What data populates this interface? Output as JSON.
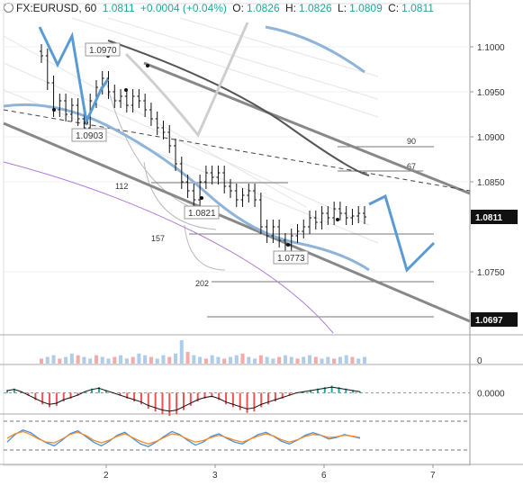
{
  "header": {
    "symbol": "FX:EURUSD, 60",
    "last": "1.0811",
    "change": "+0.0004 (+0.04%)",
    "o_label": "O:",
    "o_value": "1.0826",
    "h_label": "H:",
    "h_value": "1.0826",
    "l_label": "L:",
    "l_value": "1.0809",
    "c_label": "C:",
    "c_value": "1.0811"
  },
  "colors": {
    "up": "#26a69a",
    "down": "#ef5350",
    "projection": "#5b9bd5",
    "channel": "#888888",
    "ma_dark": "#555555",
    "ma_light": "#8fb4d9",
    "ma_purple": "#b27ad9",
    "osc_orange": "#f28c28",
    "osc_blue": "#4a90d9"
  },
  "chart_data": [
    {
      "type": "candlestick",
      "y_ticks": [
        "1.1000",
        "1.0950",
        "1.0900",
        "1.0850",
        "1.0750"
      ],
      "y_range": [
        1.068,
        1.103
      ],
      "x_ticks": [
        "2",
        "3",
        "6",
        "7"
      ],
      "price_badges": [
        {
          "label": "1.0811",
          "value": 1.0811,
          "style": "dark"
        },
        {
          "label": "1.0697",
          "value": 1.0697,
          "style": "dark"
        }
      ],
      "annotations": [
        {
          "text": "1.0970",
          "value": 1.097
        },
        {
          "text": "1.0903",
          "value": 1.0903
        },
        {
          "text": "1.0821",
          "value": 1.0821
        },
        {
          "text": "1.0773",
          "value": 1.0773
        }
      ],
      "fib_labels": [
        "90",
        "67",
        "112",
        "157",
        "202"
      ],
      "closes": [
        1.099,
        1.096,
        1.093,
        1.094,
        1.0925,
        1.0935,
        1.092,
        1.091,
        1.094,
        1.0955,
        1.0965,
        1.095,
        1.094,
        1.0945,
        1.0935,
        1.0945,
        1.094,
        1.093,
        1.092,
        1.091,
        1.0905,
        1.089,
        1.087,
        1.085,
        1.084,
        1.083,
        1.085,
        1.086,
        1.0855,
        1.086,
        1.0845,
        1.084,
        1.083,
        1.0835,
        1.084,
        1.083,
        1.08,
        1.079,
        1.08,
        1.0785,
        1.078,
        1.079,
        1.0795,
        1.08,
        1.081,
        1.0805,
        1.0815,
        1.081,
        1.082,
        1.0815,
        1.081,
        1.0812,
        1.0815,
        1.0811
      ],
      "projection": [
        1.0825,
        1.0752,
        1.0782
      ]
    },
    {
      "type": "bar",
      "name": "volume",
      "y_ticks": [
        "0"
      ],
      "values": [
        3,
        4,
        5,
        3,
        4,
        6,
        5,
        4,
        3,
        5,
        4,
        3,
        4,
        5,
        3,
        4,
        6,
        5,
        4,
        3,
        5,
        4,
        6,
        14,
        7,
        5,
        4,
        3,
        5,
        4,
        3,
        4,
        5,
        6,
        4,
        3,
        5,
        4,
        3,
        4,
        5,
        4,
        3,
        4,
        5,
        4,
        3,
        4,
        3,
        4,
        5,
        4,
        3,
        4
      ]
    },
    {
      "type": "bar",
      "name": "macd",
      "y_ticks": [
        "0.0000"
      ],
      "values": [
        0.2,
        0.3,
        0.1,
        -0.2,
        -0.5,
        -0.8,
        -1.0,
        -0.9,
        -0.6,
        -0.4,
        -0.2,
        0.1,
        0.3,
        0.4,
        0.2,
        0.0,
        -0.2,
        -0.4,
        -0.6,
        -0.8,
        -1.1,
        -1.3,
        -1.5,
        -1.6,
        -1.5,
        -1.2,
        -0.9,
        -0.6,
        -0.4,
        -0.3,
        -0.5,
        -0.8,
        -1.0,
        -1.2,
        -1.4,
        -1.3,
        -1.0,
        -0.8,
        -0.6,
        -0.4,
        -0.2,
        0.0,
        0.1,
        0.2,
        0.3,
        0.4,
        0.5,
        0.4,
        0.3,
        0.2,
        0.1
      ]
    },
    {
      "type": "line",
      "name": "oscillator",
      "series": [
        {
          "values": [
            40,
            60,
            72,
            65,
            50,
            38,
            30,
            45,
            62,
            70,
            55,
            40,
            30,
            42,
            58,
            66,
            50,
            35,
            28,
            40,
            55,
            68,
            60,
            45,
            32,
            40,
            55,
            62,
            50,
            40,
            35,
            48,
            60,
            66,
            55,
            42,
            35,
            45,
            58,
            65,
            58,
            48,
            52,
            60,
            55,
            50
          ]
        },
        {
          "values": [
            50,
            62,
            68,
            60,
            48,
            40,
            38,
            48,
            60,
            66,
            58,
            45,
            38,
            45,
            55,
            62,
            52,
            42,
            35,
            42,
            52,
            62,
            58,
            48,
            40,
            44,
            52,
            58,
            52,
            45,
            40,
            48,
            56,
            62,
            56,
            46,
            40,
            46,
            55,
            60,
            58,
            52,
            54,
            58,
            56,
            52
          ]
        }
      ]
    }
  ]
}
